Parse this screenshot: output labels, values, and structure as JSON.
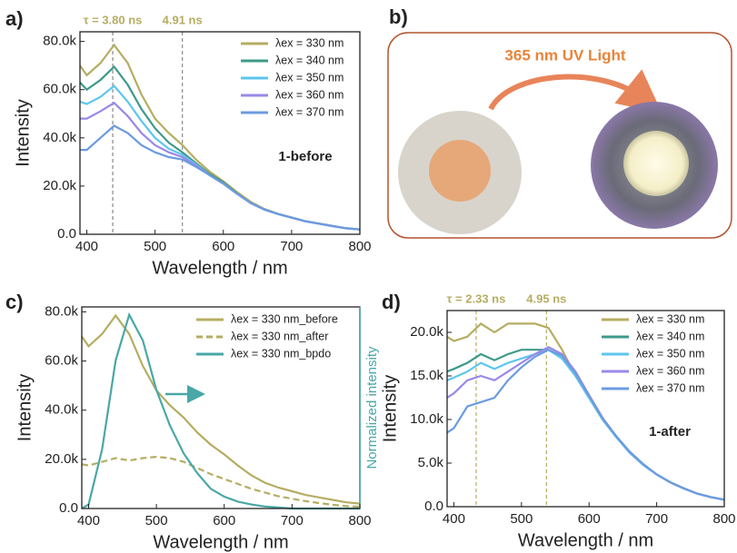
{
  "chart_data": [
    {
      "type": "line",
      "panel_label": "a)",
      "x_label": "Wavelength / nm",
      "y_label": "Intensity",
      "x": [
        390,
        400,
        420,
        440,
        460,
        480,
        500,
        520,
        540,
        560,
        580,
        600,
        620,
        640,
        660,
        680,
        700,
        720,
        740,
        760,
        780,
        800
      ],
      "series": [
        {
          "name": "λex = 330 nm",
          "color": "#b5ad62",
          "values": [
            70000,
            66000,
            71000,
            78500,
            71000,
            58000,
            48000,
            42000,
            37000,
            31000,
            26000,
            22000,
            17500,
            13500,
            10500,
            8500,
            7000,
            5500,
            4500,
            3500,
            2500,
            2000
          ]
        },
        {
          "name": "λex = 340 nm",
          "color": "#3d9a8a",
          "values": [
            63000,
            60000,
            64000,
            69500,
            62000,
            52000,
            44000,
            38000,
            34000,
            29500,
            25000,
            21500,
            17000,
            13000,
            10300,
            8400,
            6900,
            5400,
            4400,
            3400,
            2500,
            2000
          ]
        },
        {
          "name": "λex = 350 nm",
          "color": "#5cc6ef",
          "values": [
            55000,
            54000,
            57000,
            61500,
            55000,
            47000,
            40000,
            35500,
            33000,
            29000,
            24500,
            21000,
            16800,
            13000,
            10300,
            8400,
            6900,
            5400,
            4400,
            3400,
            2500,
            2000
          ]
        },
        {
          "name": "λex = 360 nm",
          "color": "#9b88e8",
          "values": [
            48000,
            48000,
            51000,
            54500,
            49000,
            42000,
            37000,
            34000,
            32000,
            28500,
            24500,
            21000,
            16800,
            13000,
            10300,
            8400,
            6900,
            5400,
            4400,
            3400,
            2500,
            2000
          ]
        },
        {
          "name": "λex = 370 nm",
          "color": "#6b9be0",
          "values": [
            35000,
            35000,
            40000,
            45000,
            42000,
            37000,
            34000,
            32000,
            31000,
            28000,
            24500,
            21000,
            16800,
            13000,
            10300,
            8400,
            6900,
            5400,
            4400,
            3400,
            2500,
            2000
          ]
        }
      ],
      "xlim": [
        390,
        800
      ],
      "xticks": [
        400,
        500,
        600,
        700,
        800
      ],
      "ylim": [
        0,
        84000
      ],
      "yticks": [
        {
          "value": 0,
          "label": "0.0"
        },
        {
          "value": 20000,
          "label": "20.0k"
        },
        {
          "value": 40000,
          "label": "40.0k"
        },
        {
          "value": 60000,
          "label": "60.0k"
        },
        {
          "value": 80000,
          "label": "80.0k"
        }
      ],
      "annotations": [
        {
          "x": 438,
          "label": "τ = 3.80 ns"
        },
        {
          "x": 540,
          "label": "4.91 ns"
        }
      ],
      "note": "1-before",
      "legend": "upper right"
    },
    {
      "type": "line",
      "panel_label": "c)",
      "x_label": "Wavelength / nm",
      "y_label": "Intensity",
      "y2_label": "Normalized intensity",
      "x": [
        390,
        400,
        420,
        440,
        460,
        480,
        500,
        520,
        540,
        560,
        580,
        600,
        620,
        640,
        660,
        680,
        700,
        720,
        740,
        760,
        780,
        800
      ],
      "series": [
        {
          "name": "λex = 330 nm_before",
          "color": "#b5ad62",
          "values": [
            70000,
            66000,
            71000,
            78500,
            71000,
            58000,
            48000,
            42000,
            37000,
            31000,
            26000,
            22000,
            17500,
            13500,
            10500,
            8500,
            7000,
            5500,
            4500,
            3500,
            2500,
            2000
          ]
        },
        {
          "name": "λex = 330 nm_after",
          "color": "#b5ad62",
          "dash": true,
          "values": [
            18000,
            17500,
            19000,
            20500,
            19500,
            20500,
            21000,
            20500,
            19000,
            16500,
            14000,
            12000,
            10000,
            8000,
            6500,
            5000,
            4000,
            3000,
            2200,
            1500,
            1000,
            700
          ]
        },
        {
          "name": "λex = 330 nm_bpdo",
          "color": "#4aa7a7",
          "axis": "y2",
          "values": [
            0,
            0.02,
            0.3,
            0.75,
            0.98,
            0.85,
            0.6,
            0.42,
            0.28,
            0.18,
            0.1,
            0.06,
            0.035,
            0.02,
            0.01,
            0.005,
            0,
            0,
            0,
            0,
            0,
            0
          ]
        }
      ],
      "xlim": [
        390,
        800
      ],
      "xticks": [
        400,
        500,
        600,
        700,
        800
      ],
      "ylim": [
        0,
        82000
      ],
      "yticks": [
        {
          "value": 0,
          "label": "0.0"
        },
        {
          "value": 20000,
          "label": "20.0k"
        },
        {
          "value": 40000,
          "label": "40.0k"
        },
        {
          "value": 60000,
          "label": "60.0k"
        },
        {
          "value": 80000,
          "label": "80.0k"
        }
      ],
      "y2lim": [
        0,
        1.02
      ],
      "legend": "upper right"
    },
    {
      "type": "line",
      "panel_label": "d)",
      "x_label": "Wavelength / nm",
      "y_label": "Intensity",
      "x": [
        390,
        400,
        420,
        440,
        460,
        480,
        500,
        520,
        540,
        560,
        580,
        600,
        620,
        640,
        660,
        680,
        700,
        720,
        740,
        760,
        780,
        800
      ],
      "series": [
        {
          "name": "λex = 330 nm",
          "color": "#b5ad62",
          "values": [
            19500,
            19000,
            19500,
            21000,
            20000,
            21000,
            21000,
            21000,
            20500,
            18000,
            15000,
            12500,
            10000,
            8000,
            6200,
            4800,
            3700,
            2800,
            2100,
            1500,
            1100,
            800
          ]
        },
        {
          "name": "λex = 340 nm",
          "color": "#3d9a8a",
          "values": [
            15500,
            15800,
            16500,
            17500,
            16800,
            17500,
            18000,
            18000,
            18000,
            17000,
            15000,
            12500,
            10000,
            8000,
            6200,
            4800,
            3700,
            2800,
            2100,
            1500,
            1100,
            800
          ]
        },
        {
          "name": "λex = 350 nm",
          "color": "#5cc6ef",
          "values": [
            14500,
            14800,
            15500,
            16500,
            15800,
            16500,
            17000,
            17500,
            18000,
            17000,
            15000,
            12500,
            10000,
            8000,
            6200,
            4800,
            3700,
            2800,
            2100,
            1500,
            1100,
            800
          ]
        },
        {
          "name": "λex = 360 nm",
          "color": "#9b88e8",
          "values": [
            12500,
            13000,
            14500,
            15000,
            14500,
            15500,
            16500,
            17500,
            18300,
            17500,
            15500,
            12800,
            10200,
            8100,
            6300,
            4900,
            3700,
            2800,
            2100,
            1500,
            1100,
            800
          ]
        },
        {
          "name": "λex = 370 nm",
          "color": "#6b9be0",
          "values": [
            8500,
            9000,
            11500,
            12000,
            12500,
            14500,
            16000,
            17200,
            18000,
            17300,
            15300,
            12700,
            10100,
            8100,
            6300,
            4900,
            3700,
            2800,
            2100,
            1500,
            1100,
            800
          ]
        }
      ],
      "xlim": [
        390,
        800
      ],
      "xticks": [
        400,
        500,
        600,
        700,
        800
      ],
      "ylim": [
        0,
        22500
      ],
      "yticks": [
        {
          "value": 0,
          "label": "0.0"
        },
        {
          "value": 5000,
          "label": "5.0k"
        },
        {
          "value": 10000,
          "label": "10.0k"
        },
        {
          "value": 15000,
          "label": "15.0k"
        },
        {
          "value": 20000,
          "label": "20.0k"
        }
      ],
      "annotations": [
        {
          "x": 433,
          "label": "τ = 2.33 ns"
        },
        {
          "x": 537,
          "label": "4.95 ns"
        }
      ],
      "note": "1-after",
      "legend": "upper right"
    }
  ],
  "photo_panel": {
    "label": "b)",
    "caption": "365 nm UV Light"
  }
}
